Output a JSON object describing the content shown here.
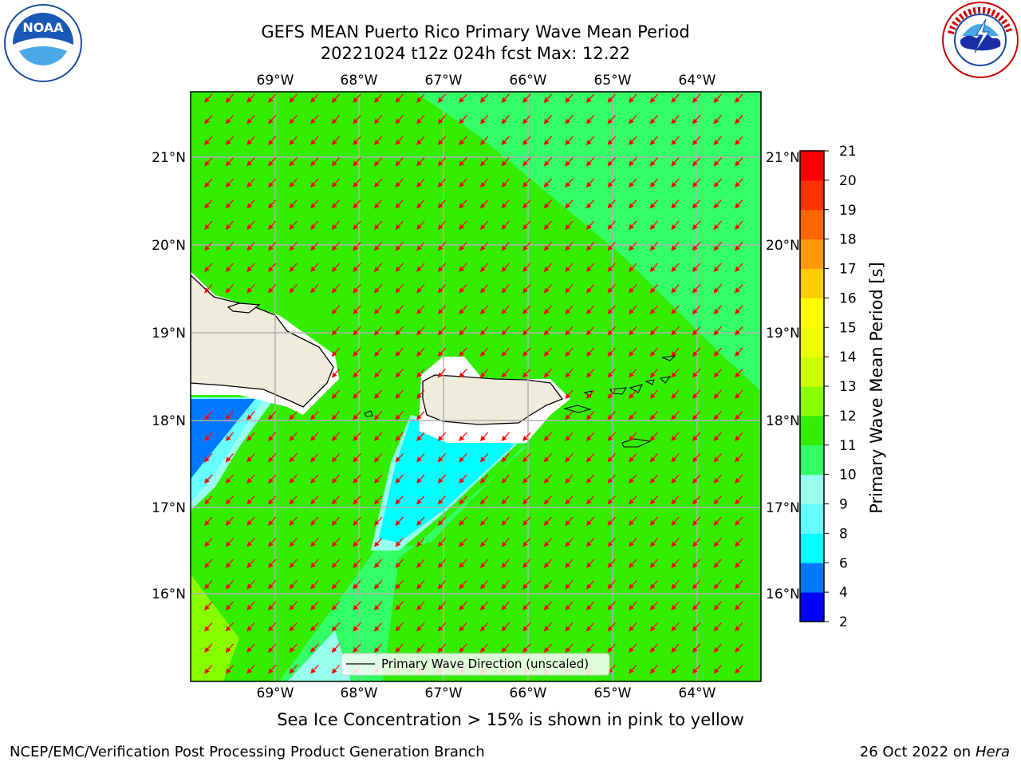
{
  "title_line1": "GEFS MEAN Puerto Rico Primary Wave Mean Period",
  "title_line2": "20221024 t12z 024h fcst   Max: 12.22",
  "logos": {
    "left": "noaa-logo",
    "right": "nws-logo"
  },
  "map": {
    "lon_ticks": [
      "69°W",
      "68°W",
      "67°W",
      "66°W",
      "65°W",
      "64°W"
    ],
    "lat_ticks": [
      "21°N",
      "20°N",
      "19°N",
      "18°N",
      "17°N",
      "16°N"
    ],
    "legend_label": "Primary Wave Direction (unscaled)",
    "land_color": "#efecdc",
    "arrow_color": "#ff0000",
    "grid_color": "#b0b0b0"
  },
  "colorbar": {
    "label": "Primary Wave Mean Period [s]",
    "ticks": [
      "2",
      "4",
      "6",
      "8",
      "9",
      "10",
      "11",
      "12",
      "13",
      "14",
      "15",
      "16",
      "17",
      "18",
      "19",
      "20",
      "21"
    ],
    "colors": [
      "#0000ff",
      "#0077ff",
      "#00ffff",
      "#66ffff",
      "#99ffee",
      "#33ff66",
      "#33ee00",
      "#88ff00",
      "#ccff00",
      "#eeff00",
      "#ffff00",
      "#ffcc00",
      "#ff9900",
      "#ff6600",
      "#ff3300",
      "#ff0000"
    ]
  },
  "footer_note": "Sea Ice Concentration > 15% is shown in pink to yellow",
  "footer_left": "NCEP/EMC/Verification Post Processing Product Generation Branch",
  "footer_date": "26 Oct 2022 on",
  "footer_host": "Hera"
}
